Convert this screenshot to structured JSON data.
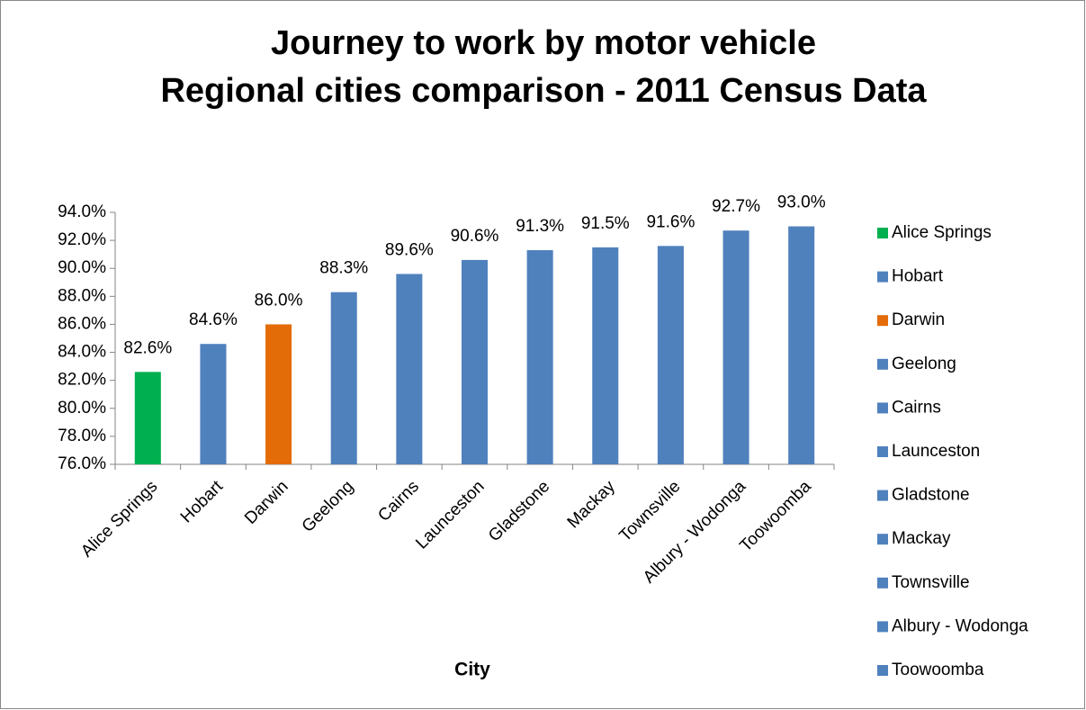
{
  "chart_data": {
    "type": "bar",
    "title": "Journey to work by motor vehicle",
    "subtitle": "Regional cities comparison - 2011 Census Data",
    "x_label": "City",
    "categories": [
      "Alice Springs",
      "Hobart",
      "Darwin",
      "Geelong",
      "Cairns",
      "Launceston",
      "Gladstone",
      "Mackay",
      "Townsville",
      "Albury - Wodonga",
      "Toowoomba"
    ],
    "values": [
      82.6,
      84.6,
      86.0,
      88.3,
      89.6,
      90.6,
      91.3,
      91.5,
      91.6,
      92.7,
      93.0
    ],
    "value_labels": [
      "82.6%",
      "84.6%",
      "86.0%",
      "88.3%",
      "89.6%",
      "90.6%",
      "91.3%",
      "91.5%",
      "91.6%",
      "92.7%",
      "93.0%"
    ],
    "colors": [
      "#00b050",
      "#4f81bd",
      "#e36c09",
      "#4f81bd",
      "#4f81bd",
      "#4f81bd",
      "#4f81bd",
      "#4f81bd",
      "#4f81bd",
      "#4f81bd",
      "#4f81bd"
    ],
    "ylim": [
      76,
      94
    ],
    "yticks": [
      {
        "value": 76,
        "label": "76.0%"
      },
      {
        "value": 78,
        "label": "78.0%"
      },
      {
        "value": 80,
        "label": "80.0%"
      },
      {
        "value": 82,
        "label": "82.0%"
      },
      {
        "value": 84,
        "label": "84.0%"
      },
      {
        "value": 86,
        "label": "86.0%"
      },
      {
        "value": 88,
        "label": "88.0%"
      },
      {
        "value": 90,
        "label": "90.0%"
      },
      {
        "value": 92,
        "label": "92.0%"
      },
      {
        "value": 94,
        "label": "94.0%"
      }
    ],
    "grid": false,
    "legend": "right"
  }
}
